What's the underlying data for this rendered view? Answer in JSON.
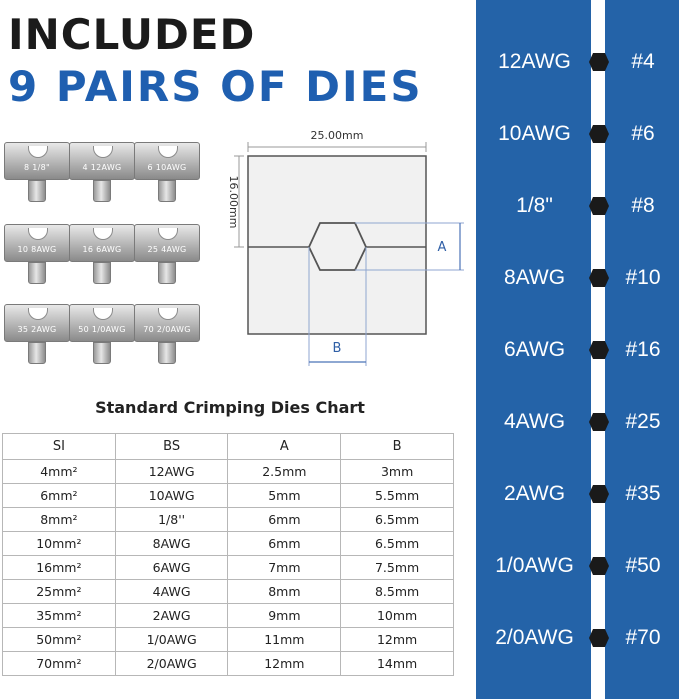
{
  "headline": {
    "line1": "INCLUDED",
    "line2": "9 PAIRS OF DIES"
  },
  "die_labels": [
    "8 1/8\"",
    "4 12AWG",
    "6 10AWG",
    "10 8AWG",
    "16 6AWG",
    "25 4AWG",
    "35 2AWG",
    "50 1/0AWG",
    "70 2/0AWG"
  ],
  "diagram": {
    "width_label": "25.00mm",
    "height_label": "16.00mm",
    "a_label": "A",
    "b_label": "B"
  },
  "chart_title": "Standard Crimping Dies Chart",
  "table": {
    "headers": [
      "SI",
      "BS",
      "A",
      "B"
    ],
    "rows": [
      [
        "4mm²",
        "12AWG",
        "2.5mm",
        "3mm"
      ],
      [
        "6mm²",
        "10AWG",
        "5mm",
        "5.5mm"
      ],
      [
        "8mm²",
        "1/8''",
        "6mm",
        "6.5mm"
      ],
      [
        "10mm²",
        "8AWG",
        "6mm",
        "6.5mm"
      ],
      [
        "16mm²",
        "6AWG",
        "7mm",
        "7.5mm"
      ],
      [
        "25mm²",
        "4AWG",
        "8mm",
        "8.5mm"
      ],
      [
        "35mm²",
        "2AWG",
        "9mm",
        "10mm"
      ],
      [
        "50mm²",
        "1/0AWG",
        "11mm",
        "12mm"
      ],
      [
        "70mm²",
        "2/0AWG",
        "12mm",
        "14mm"
      ]
    ]
  },
  "size_map": [
    {
      "bs": "12AWG",
      "num": "#4"
    },
    {
      "bs": "10AWG",
      "num": "#6"
    },
    {
      "bs": "1/8\"",
      "num": "#8"
    },
    {
      "bs": "8AWG",
      "num": "#10"
    },
    {
      "bs": "6AWG",
      "num": "#16"
    },
    {
      "bs": "4AWG",
      "num": "#25"
    },
    {
      "bs": "2AWG",
      "num": "#35"
    },
    {
      "bs": "1/0AWG",
      "num": "#50"
    },
    {
      "bs": "2/0AWG",
      "num": "#70"
    }
  ],
  "colors": {
    "panel_blue": "#2463a8",
    "headline_blue": "#1f5fb0",
    "hex_marker": "#1a1a1a"
  }
}
